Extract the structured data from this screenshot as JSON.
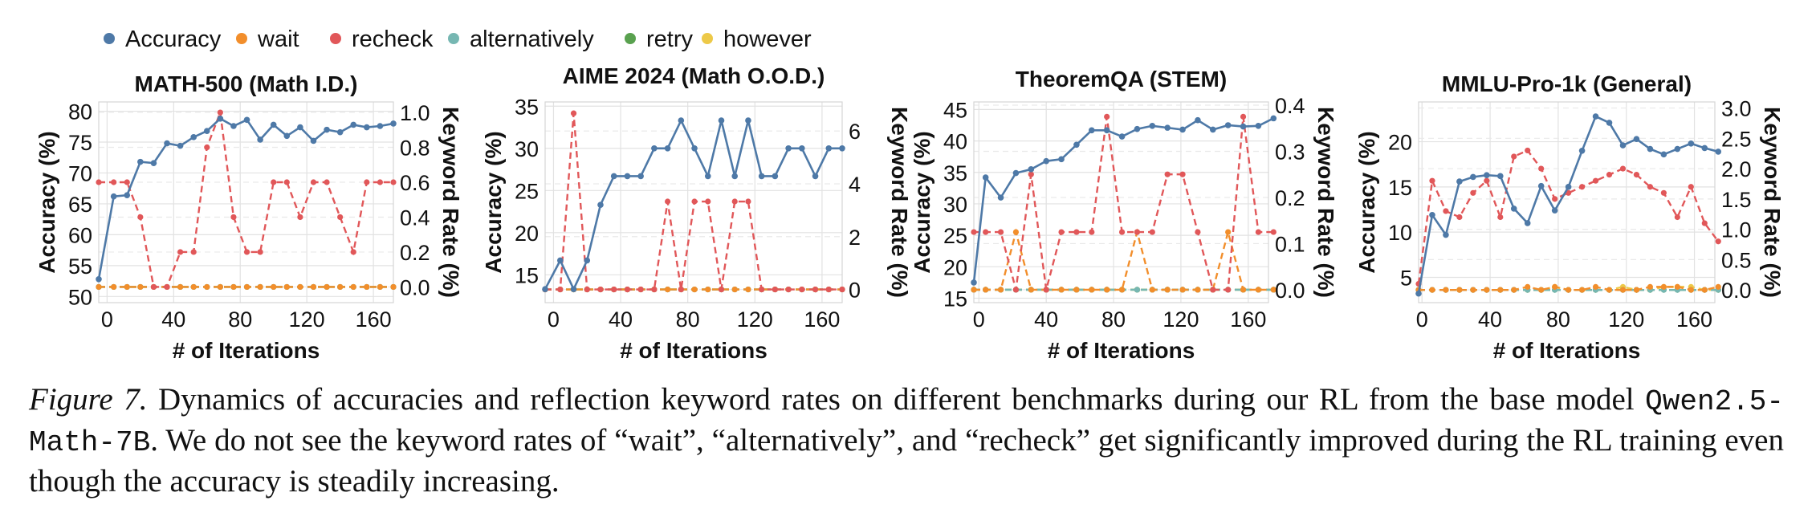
{
  "legend": [
    {
      "name": "Accuracy",
      "color": "#4e79a7"
    },
    {
      "name": "wait",
      "color": "#f28e2b"
    },
    {
      "name": "recheck",
      "color": "#e15759"
    },
    {
      "name": "alternatively",
      "color": "#76b7b2"
    },
    {
      "name": "retry",
      "color": "#59a14f"
    },
    {
      "name": "however",
      "color": "#edc948"
    }
  ],
  "caption": {
    "label": "Figure 7.",
    "text_1": " Dynamics of accuracies and reflection keyword rates on different benchmarks during our RL from the base model ",
    "code": "Qwen2.5-Math-7B",
    "text_2": ". We do not see the keyword rates of “wait”, “alternatively”, and “recheck” get significantly improved during the RL training even though the accuracy is steadily increasing."
  },
  "chart_data": [
    {
      "type": "line",
      "title": "MATH-500 (Math I.D.)",
      "xlabel": "# of Iterations",
      "ylabel": "Accuracy (%)",
      "y2label": "Keyword Rate (%)",
      "xlim": [
        -5,
        172
      ],
      "ylim": [
        49,
        81.5
      ],
      "y2lim": [
        -0.09,
        1.06
      ],
      "xticks": [
        0,
        40,
        80,
        120,
        160
      ],
      "yticks": [
        50,
        55,
        60,
        65,
        70,
        75,
        80
      ],
      "y2ticks": [
        0.0,
        0.2,
        0.4,
        0.6,
        0.8,
        1.0
      ],
      "y2tick_labels": [
        "0.0",
        "0.2",
        "0.4",
        "0.6",
        "0.8",
        "1.0"
      ],
      "grid": true,
      "x": [
        -5,
        4,
        12,
        20,
        28,
        36,
        44,
        52,
        60,
        68,
        76,
        84,
        92,
        100,
        108,
        116,
        124,
        132,
        140,
        148,
        156,
        164,
        172
      ],
      "accuracy": [
        52.8,
        66.2,
        66.4,
        71.8,
        71.6,
        74.8,
        74.4,
        75.8,
        76.8,
        78.8,
        77.6,
        78.6,
        75.4,
        77.8,
        76.0,
        77.4,
        75.2,
        77.0,
        76.6,
        77.8,
        77.4,
        77.6,
        78.0
      ],
      "keywords": {
        "recheck": [
          0.6,
          0.6,
          0.6,
          0.4,
          0.0,
          0.0,
          0.2,
          0.2,
          0.8,
          1.0,
          0.4,
          0.2,
          0.2,
          0.6,
          0.6,
          0.4,
          0.6,
          0.6,
          0.4,
          0.2,
          0.6,
          0.6,
          0.6
        ],
        "wait": [
          0,
          0,
          0,
          0,
          0,
          0,
          0,
          0,
          0,
          0,
          0,
          0,
          0,
          0,
          0,
          0,
          0,
          0,
          0,
          0,
          0,
          0,
          0
        ],
        "alternatively": [
          0,
          0,
          0,
          0,
          0,
          0,
          0,
          0,
          0,
          0,
          0,
          0,
          0,
          0,
          0,
          0,
          0,
          0,
          0,
          0,
          0,
          0,
          0
        ],
        "retry": [
          0,
          0,
          0,
          0,
          0,
          0,
          0,
          0,
          0,
          0,
          0,
          0,
          0,
          0,
          0,
          0,
          0,
          0,
          0,
          0,
          0,
          0,
          0
        ],
        "however": [
          0,
          0,
          0,
          0,
          0,
          0,
          0,
          0,
          0,
          0,
          0,
          0,
          0,
          0,
          0,
          0,
          0,
          0,
          0,
          0,
          0,
          0,
          0
        ]
      }
    },
    {
      "type": "line",
      "title": "AIME 2024 (Math O.O.D.)",
      "xlabel": "# of Iterations",
      "ylabel": "Accuracy (%)",
      "y2label": "Keyword Rate (%)",
      "xlim": [
        -5,
        172
      ],
      "ylim": [
        11.7,
        35.5
      ],
      "y2lim": [
        -0.5,
        7.1
      ],
      "xticks": [
        0,
        40,
        80,
        120,
        160
      ],
      "yticks": [
        15,
        20,
        25,
        30,
        35
      ],
      "y2ticks": [
        0,
        2,
        4,
        6
      ],
      "y2tick_labels": [
        "0",
        "2",
        "4",
        "6"
      ],
      "grid": true,
      "x": [
        -5,
        4,
        12,
        20,
        28,
        36,
        44,
        52,
        60,
        68,
        76,
        84,
        92,
        100,
        108,
        116,
        124,
        132,
        140,
        148,
        156,
        164,
        172
      ],
      "accuracy": [
        13.3,
        16.7,
        13.3,
        16.7,
        23.3,
        26.7,
        26.7,
        26.7,
        30.0,
        30.0,
        33.3,
        30.0,
        26.7,
        33.3,
        26.7,
        33.3,
        26.7,
        26.7,
        30.0,
        30.0,
        26.7,
        30.0,
        30.0
      ],
      "keywords": {
        "recheck": [
          0,
          0,
          6.67,
          0,
          0,
          0,
          0,
          0,
          0,
          3.33,
          0,
          3.33,
          3.33,
          0,
          3.33,
          3.33,
          0,
          0,
          0,
          0,
          0,
          0,
          0
        ],
        "wait": [
          0,
          0,
          0,
          0,
          0,
          0,
          0,
          0,
          0,
          0,
          0,
          0,
          0,
          0,
          0,
          0,
          0,
          0,
          0,
          0,
          0,
          0,
          0
        ],
        "alternatively": [
          0,
          0,
          0,
          0,
          0,
          0,
          0,
          0,
          0,
          0,
          0,
          0,
          0,
          0,
          0,
          0,
          0,
          0,
          0,
          0,
          0,
          0,
          0
        ],
        "retry": [
          0,
          0,
          0,
          0,
          0,
          0,
          0,
          0,
          0,
          0,
          0,
          0,
          0,
          0,
          0,
          0,
          0,
          0,
          0,
          0,
          0,
          0,
          0
        ],
        "however": [
          0,
          0,
          0,
          0,
          0,
          0,
          0,
          0,
          0,
          0,
          0,
          0,
          0,
          0,
          0,
          0,
          0,
          0,
          0,
          0,
          0,
          0,
          0
        ]
      }
    },
    {
      "type": "line",
      "title": "TheoremQA (STEM)",
      "xlabel": "# of Iterations",
      "ylabel": "Accuracy (%)",
      "y2label": "Keyword Rate (%)",
      "xlim": [
        -3,
        172
      ],
      "ylim": [
        14.3,
        46.2
      ],
      "y2lim": [
        -0.028,
        0.407
      ],
      "xticks": [
        0,
        40,
        80,
        120,
        160
      ],
      "yticks": [
        15,
        20,
        25,
        30,
        35,
        40,
        45
      ],
      "y2ticks": [
        0.0,
        0.1,
        0.2,
        0.3,
        0.4
      ],
      "y2tick_labels": [
        "0.0",
        "0.1",
        "0.2",
        "0.3",
        "0.4"
      ],
      "grid": true,
      "x": [
        -3,
        4,
        13,
        22,
        31,
        40,
        49,
        58,
        67,
        76,
        85,
        94,
        103,
        112,
        121,
        130,
        139,
        148,
        157,
        166,
        175
      ],
      "accuracy": [
        17.5,
        34.2,
        31.0,
        34.9,
        35.5,
        36.8,
        37.1,
        39.4,
        41.7,
        41.7,
        40.7,
        41.9,
        42.4,
        42.1,
        41.8,
        43.3,
        41.8,
        42.5,
        42.3,
        42.4,
        43.6
      ],
      "keywords": {
        "recheck": [
          0.125,
          0.125,
          0.125,
          0.0,
          0.25,
          0.0,
          0.125,
          0.125,
          0.125,
          0.375,
          0.125,
          0.125,
          0.125,
          0.25,
          0.25,
          0.125,
          0.0,
          0.0,
          0.375,
          0.125,
          0.125
        ],
        "wait": [
          0,
          0,
          0,
          0.125,
          0,
          0,
          0,
          0,
          0,
          0,
          0,
          0.125,
          0,
          0,
          0,
          0,
          0,
          0.125,
          0,
          0,
          0
        ],
        "alternatively": [
          0,
          0,
          0,
          0,
          0,
          0,
          0,
          0,
          0,
          0,
          0,
          0,
          0,
          0,
          0,
          0,
          0,
          0,
          0,
          0,
          0
        ],
        "retry": [
          0,
          0,
          0,
          0,
          0,
          0,
          0,
          0,
          0,
          0,
          0,
          0,
          0,
          0,
          0,
          0,
          0,
          0,
          0,
          0,
          0
        ],
        "however": [
          0,
          0,
          0,
          0,
          0,
          0,
          0,
          0,
          0,
          0,
          0,
          0,
          0,
          0,
          0,
          0,
          0,
          0,
          0,
          0,
          0
        ]
      }
    },
    {
      "type": "line",
      "title": "MMLU-Pro-1k (General)",
      "xlabel": "# of Iterations",
      "ylabel": "Accuracy (%)",
      "y2label": "Keyword Rate (%)",
      "xlim": [
        -2,
        172
      ],
      "ylim": [
        2.2,
        24.4
      ],
      "y2lim": [
        -0.21,
        3.1
      ],
      "xticks": [
        0,
        40,
        80,
        120,
        160
      ],
      "yticks": [
        5,
        10,
        15,
        20
      ],
      "y2ticks": [
        0.0,
        0.5,
        1.0,
        1.5,
        2.0,
        2.5,
        3.0
      ],
      "y2tick_labels": [
        "0.0",
        "0.5",
        "1.0",
        "1.5",
        "2.0",
        "2.5",
        "3.0"
      ],
      "grid": true,
      "x": [
        -2,
        6,
        14,
        22,
        30,
        38,
        46,
        54,
        62,
        70,
        78,
        86,
        94,
        102,
        110,
        118,
        126,
        134,
        142,
        150,
        158,
        166,
        174
      ],
      "accuracy": [
        3.2,
        11.9,
        9.7,
        15.6,
        16.1,
        16.3,
        16.2,
        12.6,
        11.0,
        15.1,
        12.4,
        15.0,
        19.0,
        22.8,
        22.1,
        19.6,
        20.3,
        19.2,
        18.6,
        19.2,
        19.8,
        19.3,
        18.9
      ],
      "keywords": {
        "recheck": [
          0.1,
          1.8,
          1.3,
          1.2,
          1.6,
          1.8,
          1.2,
          2.2,
          2.3,
          2.0,
          1.5,
          1.6,
          1.7,
          1.8,
          1.9,
          2.0,
          1.9,
          1.7,
          1.6,
          1.2,
          1.7,
          1.1,
          0.8
        ],
        "wait": [
          0,
          0,
          0,
          0,
          0,
          0,
          0,
          0,
          0.05,
          0.0,
          0.05,
          0.0,
          0,
          0.05,
          0,
          0,
          0,
          0.05,
          0.05,
          0.05,
          0,
          0.0,
          0.05
        ],
        "alternatively": [
          0,
          0,
          0,
          0,
          0,
          0,
          0,
          0,
          0,
          0,
          0,
          0,
          0,
          0,
          0,
          0,
          0,
          0,
          0,
          0,
          0,
          0,
          0
        ],
        "retry": [
          0,
          0,
          0,
          0,
          0,
          0,
          0,
          0,
          0,
          0,
          0,
          0,
          0,
          0,
          0,
          0,
          0,
          0,
          0,
          0,
          0,
          0,
          0
        ],
        "however": [
          0,
          0,
          0,
          0,
          0,
          0,
          0,
          0,
          0,
          0,
          0.05,
          0,
          0,
          0,
          0,
          0.05,
          0,
          0,
          0.05,
          0.05,
          0.05,
          0,
          0
        ]
      }
    }
  ]
}
